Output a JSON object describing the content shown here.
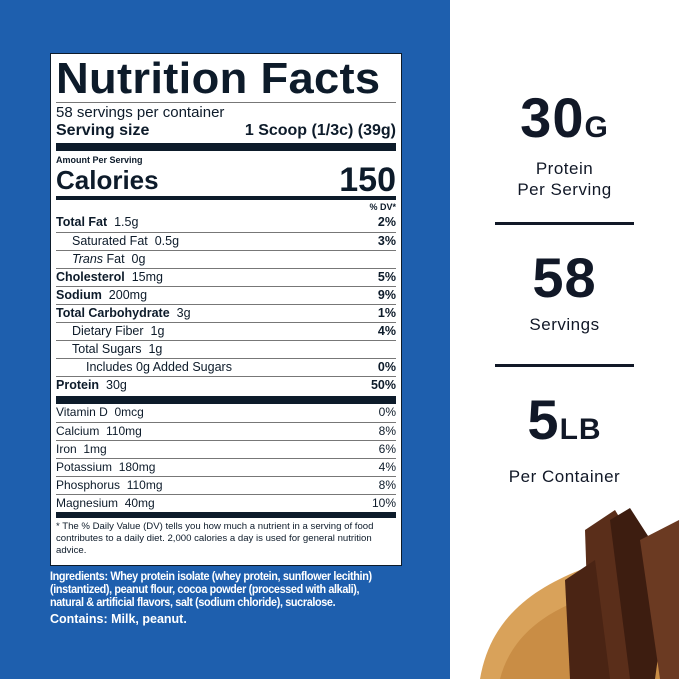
{
  "label": {
    "title": "Nutrition Facts",
    "servings_per_container": "58 servings per container",
    "serving_size_label": "Serving size",
    "serving_size_value": "1 Scoop (1/3c) (39g)",
    "amount_per_serving": "Amount Per Serving",
    "calories_label": "Calories",
    "calories_value": "150",
    "dv_header": "% DV*",
    "nutrients": [
      {
        "name": "Total Fat",
        "amount": "1.5g",
        "dv": "2%",
        "bold": true
      },
      {
        "name": "Saturated Fat",
        "amount": "0.5g",
        "dv": "3%"
      },
      {
        "name": "Trans",
        "name2": "Fat",
        "amount": "0g",
        "dv": ""
      },
      {
        "name": "Cholesterol",
        "amount": "15mg",
        "dv": "5%",
        "bold": true
      },
      {
        "name": "Sodium",
        "amount": "200mg",
        "dv": "9%",
        "bold": true
      },
      {
        "name": "Total Carbohydrate",
        "amount": "3g",
        "dv": "1%",
        "bold": true
      },
      {
        "name": "Dietary Fiber",
        "amount": "1g",
        "dv": "4%"
      },
      {
        "name": "Total Sugars",
        "amount": "1g",
        "dv": ""
      },
      {
        "name": "Includes 0g Added Sugars",
        "amount": "",
        "dv": "0%"
      },
      {
        "name": "Protein",
        "amount": "30g",
        "dv": "50%",
        "bold": true
      }
    ],
    "vitamins": [
      {
        "name": "Vitamin D",
        "amount": "0mcg",
        "dv": "0%"
      },
      {
        "name": "Calcium",
        "amount": "110mg",
        "dv": "8%"
      },
      {
        "name": "Iron",
        "amount": "1mg",
        "dv": "6%"
      },
      {
        "name": "Potassium",
        "amount": "180mg",
        "dv": "4%"
      },
      {
        "name": "Phosphorus",
        "amount": "110mg",
        "dv": "8%"
      },
      {
        "name": "Magnesium",
        "amount": "40mg",
        "dv": "10%"
      }
    ],
    "footnote": "* The % Daily Value (DV) tells you how much a nutrient in a serving of food contributes to a daily diet. 2,000 calories a day is used for general nutrition advice."
  },
  "ingredients": "Ingredients: Whey protein isolate (whey protein, sunflower lecithin)(instantized), peanut flour, cocoa powder (processed with alkali), natural & artificial flavors, salt (sodium chloride), sucralose.",
  "contains": "Contains: Milk, peanut.",
  "stats": [
    {
      "value": "30",
      "unit": "G",
      "line1": "Protein",
      "line2": "Per Serving"
    },
    {
      "value": "58",
      "unit": "",
      "line1": "Servings",
      "line2": ""
    },
    {
      "value": "5",
      "unit": "LB",
      "line1": "Per Container",
      "line2": ""
    }
  ],
  "colors": {
    "background_blue": "#1e5fae",
    "text_dark": "#111827"
  }
}
